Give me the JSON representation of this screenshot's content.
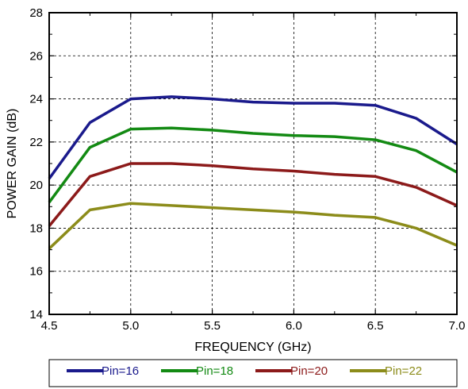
{
  "chart_data": {
    "type": "line",
    "xlabel": "FREQUENCY (GHz)",
    "ylabel": "POWER GAIN (dB)",
    "xlim": [
      4.5,
      7.0
    ],
    "ylim": [
      14,
      28
    ],
    "xticks": [
      4.5,
      5.0,
      5.5,
      6.0,
      6.5,
      7.0
    ],
    "xtick_labels": [
      "4.5",
      "5.0",
      "5.5",
      "6.0",
      "6.5",
      "7.0"
    ],
    "yticks": [
      14,
      16,
      18,
      20,
      22,
      24,
      26,
      28
    ],
    "ytick_labels": [
      "14",
      "16",
      "18",
      "20",
      "22",
      "24",
      "26",
      "28"
    ],
    "grid": true,
    "legend_position": "bottom",
    "x": [
      4.5,
      4.75,
      5.0,
      5.25,
      5.5,
      5.75,
      6.0,
      6.25,
      6.5,
      6.75,
      7.0
    ],
    "series": [
      {
        "name": "Pin=16",
        "color": "#1a1a8c",
        "values": [
          20.3,
          22.9,
          24.0,
          24.1,
          24.0,
          23.85,
          23.8,
          23.8,
          23.7,
          23.1,
          21.9
        ]
      },
      {
        "name": "Pin=18",
        "color": "#138a13",
        "values": [
          19.2,
          21.75,
          22.6,
          22.65,
          22.55,
          22.4,
          22.3,
          22.25,
          22.1,
          21.6,
          20.6
        ]
      },
      {
        "name": "Pin=20",
        "color": "#8c1a1a",
        "values": [
          18.1,
          20.4,
          21.0,
          21.0,
          20.9,
          20.75,
          20.65,
          20.5,
          20.4,
          19.9,
          19.05
        ]
      },
      {
        "name": "Pin=22",
        "color": "#8c8c1a",
        "values": [
          17.05,
          18.85,
          19.15,
          19.05,
          18.95,
          18.85,
          18.75,
          18.6,
          18.5,
          18.0,
          17.2
        ]
      }
    ]
  }
}
